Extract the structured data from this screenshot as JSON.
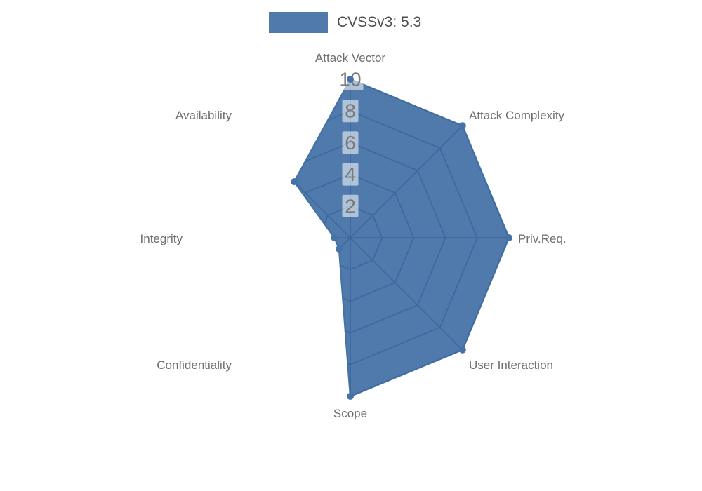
{
  "page": {
    "background": "#ffffff"
  },
  "legend": {
    "label": "CVSSv3: 5.3"
  },
  "chart_data": {
    "type": "radar",
    "title": "",
    "legend_label": "CVSSv3: 5.3",
    "legend_position": "top-center",
    "categories": [
      "Attack Vector",
      "Attack Complexity",
      "Priv.Req.",
      "User Interaction",
      "Scope",
      "Confidentiality",
      "Integrity",
      "Availability"
    ],
    "series": [
      {
        "name": "CVSSv3: 5.3",
        "values": [
          10,
          10,
          10,
          10,
          10,
          1,
          1,
          5
        ]
      }
    ],
    "radial_axis": {
      "min": 0,
      "max": 10,
      "ticks": [
        2,
        4,
        6,
        8,
        10
      ],
      "tick_axis": "vertical-top"
    },
    "grid": {
      "shape": "polygon-web",
      "rings": [
        2,
        4,
        6,
        8,
        10
      ],
      "spokes": 8,
      "clipped_to_fill": true
    },
    "colors": {
      "fill": "#4f7aab",
      "outline": "#4673a6",
      "grid_line": "#3d689b",
      "axis_label": "#6e6e6e",
      "tick_label": "#7a7a7a",
      "tick_box": "rgba(255,255,255,0.55)",
      "legend_text": "#4d4d4d"
    }
  }
}
